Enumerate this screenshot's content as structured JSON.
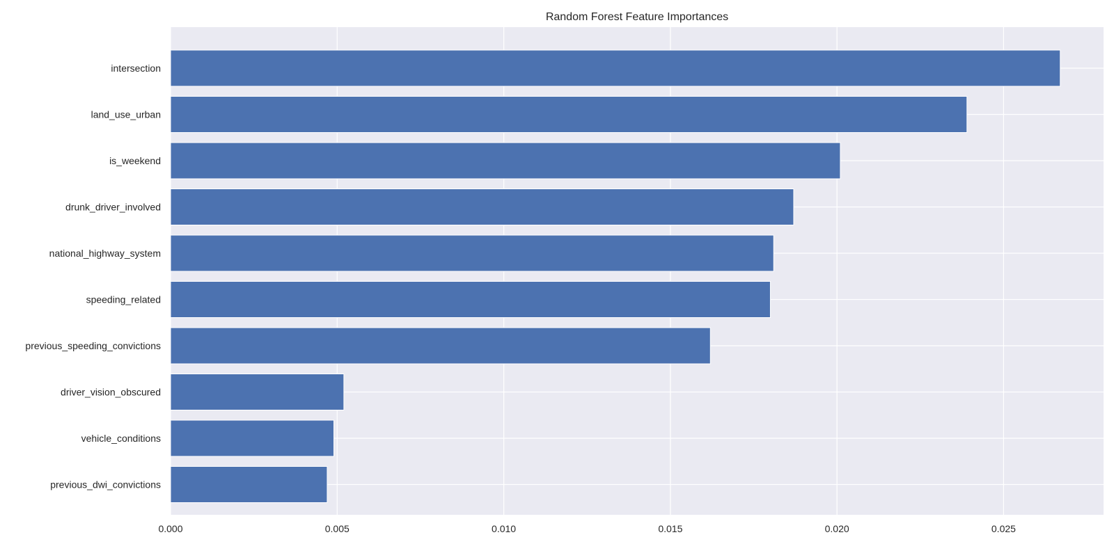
{
  "chart_data": {
    "type": "bar",
    "orientation": "horizontal",
    "title": "Random Forest Feature Importances",
    "xlabel": "",
    "ylabel": "",
    "categories": [
      "intersection",
      "land_use_urban",
      "is_weekend",
      "drunk_driver_involved",
      "national_highway_system",
      "speeding_related",
      "previous_speeding_convictions",
      "driver_vision_obscured",
      "vehicle_conditions",
      "previous_dwi_convictions"
    ],
    "values": [
      0.0267,
      0.0239,
      0.0201,
      0.0187,
      0.0181,
      0.018,
      0.0162,
      0.0052,
      0.0049,
      0.0047
    ],
    "xlim": [
      0.0,
      0.028
    ],
    "xticks": [
      "0.000",
      "0.005",
      "0.010",
      "0.015",
      "0.020",
      "0.025"
    ],
    "xtick_values": [
      0.0,
      0.005,
      0.01,
      0.015,
      0.02,
      0.025
    ],
    "grid": true,
    "colors": {
      "bar": "#4c72b0",
      "plot_background": "#eaeaf2",
      "grid": "#ffffff",
      "text": "#262626"
    }
  }
}
